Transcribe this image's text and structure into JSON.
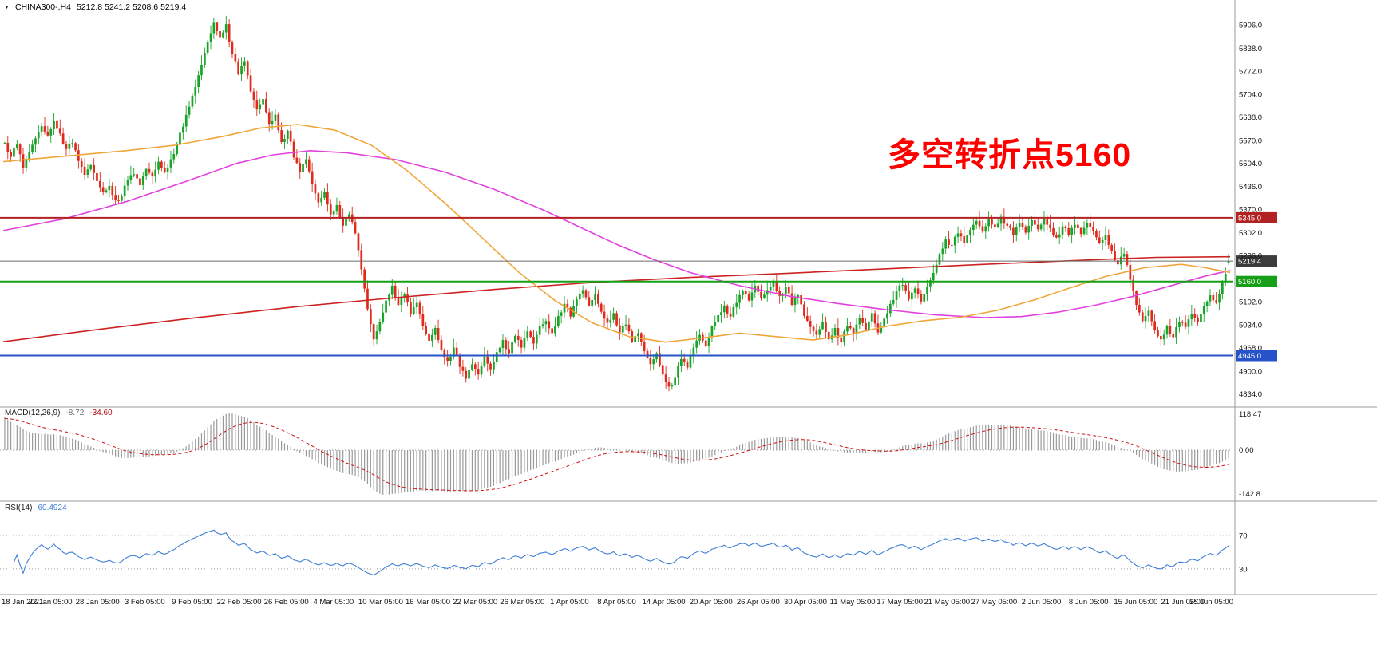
{
  "header": {
    "collapse_icon": "▼",
    "symbol": "CHINA300-,H4",
    "ohlc": "5212.8 5241.2 5208.6 5219.4"
  },
  "annotation": {
    "text": "多空转折点5160",
    "color": "#FF0000"
  },
  "chart_data": {
    "type": "candlestick",
    "symbol": "CHINA300-",
    "timeframe": "H4",
    "title": "CHINA300-,H4",
    "last_ohlc": {
      "open": 5212.8,
      "high": 5241.2,
      "low": 5208.6,
      "close": 5219.4
    },
    "price_range": {
      "max": 5943,
      "min": 4807
    },
    "price_axis_labels": [
      "5906.0",
      "5838.0",
      "5772.0",
      "5704.0",
      "5638.0",
      "5570.0",
      "5504.0",
      "5436.0",
      "5370.0",
      "5302.0",
      "5236.0",
      "5102.0",
      "5034.0",
      "4968.0",
      "4900.0",
      "4834.0"
    ],
    "time_labels": [
      "18 Jan 2021",
      "22 Jan 05:00",
      "28 Jan 05:00",
      "3 Feb 05:00",
      "9 Feb 05:00",
      "22 Feb 05:00",
      "26 Feb 05:00",
      "4 Mar 05:00",
      "10 Mar 05:00",
      "16 Mar 05:00",
      "22 Mar 05:00",
      "26 Mar 05:00",
      "1 Apr 05:00",
      "8 Apr 05:00",
      "14 Apr 05:00",
      "20 Apr 05:00",
      "26 Apr 05:00",
      "30 Apr 05:00",
      "11 May 05:00",
      "17 May 05:00",
      "21 May 05:00",
      "27 May 05:00",
      "2 Jun 05:00",
      "8 Jun 05:00",
      "15 Jun 05:00",
      "21 Jun 05:00",
      "25 Jun 05:00"
    ],
    "closes": [
      5563,
      5522,
      5558,
      5491,
      5535,
      5576,
      5611,
      5584,
      5628,
      5590,
      5545,
      5562,
      5510,
      5470,
      5498,
      5452,
      5420,
      5438,
      5396,
      5408,
      5455,
      5472,
      5440,
      5487,
      5465,
      5508,
      5478,
      5515,
      5560,
      5610,
      5668,
      5725,
      5790,
      5855,
      5912,
      5870,
      5908,
      5820,
      5762,
      5798,
      5712,
      5660,
      5690,
      5618,
      5645,
      5565,
      5598,
      5520,
      5478,
      5515,
      5442,
      5390,
      5420,
      5355,
      5382,
      5322,
      5355,
      5300,
      5195,
      5080,
      4992,
      5042,
      5105,
      5148,
      5092,
      5122,
      5065,
      5098,
      5030,
      4988,
      5025,
      4962,
      4930,
      4968,
      4912,
      4878,
      4920,
      4890,
      4942,
      4905,
      4955,
      4990,
      4952,
      5002,
      4968,
      5015,
      4980,
      5030,
      5045,
      5010,
      5060,
      5095,
      5058,
      5108,
      5135,
      5090,
      5122,
      5072,
      5040,
      5068,
      5012,
      5035,
      4985,
      5010,
      4958,
      4920,
      4952,
      4890,
      4855,
      4880,
      4935,
      4910,
      4968,
      5005,
      4972,
      5030,
      5062,
      5090,
      5058,
      5098,
      5132,
      5105,
      5148,
      5112,
      5135,
      5160,
      5118,
      5145,
      5092,
      5120,
      5060,
      5028,
      5005,
      5042,
      4992,
      5025,
      4985,
      5030,
      5008,
      5055,
      5020,
      5068,
      5012,
      5052,
      5095,
      5132,
      5150,
      5108,
      5140,
      5102,
      5146,
      5185,
      5240,
      5282,
      5265,
      5300,
      5272,
      5310,
      5336,
      5305,
      5340,
      5318,
      5348,
      5322,
      5295,
      5330,
      5302,
      5338,
      5312,
      5342,
      5315,
      5288,
      5320,
      5295,
      5325,
      5298,
      5330,
      5308,
      5272,
      5295,
      5248,
      5210,
      5240,
      5165,
      5092,
      5045,
      5075,
      5018,
      4992,
      5030,
      4998,
      5042,
      5028,
      5065,
      5042,
      5088,
      5120,
      5098,
      5160,
      5219.4
    ],
    "horizontal_lines": [
      {
        "price": 5345.0,
        "label": "5345.0",
        "color": "#B22222",
        "width": 2
      },
      {
        "price": 5219.4,
        "label": "5219.4",
        "color": "#6B6B6B",
        "width": 1,
        "tag_color": "#3C3C3C"
      },
      {
        "price": 5160.0,
        "label": "5160.0",
        "color": "#17A017",
        "width": 2
      },
      {
        "price": 4945.0,
        "label": "4945.0",
        "color": "#2753C8",
        "width": 2
      }
    ],
    "moving_averages": [
      {
        "name": "ma-long-red",
        "color": "#CC2222",
        "width": 1.6,
        "points": [
          [
            0,
            4985
          ],
          [
            0.08,
            5022
          ],
          [
            0.16,
            5056
          ],
          [
            0.24,
            5087
          ],
          [
            0.32,
            5113
          ],
          [
            0.4,
            5137
          ],
          [
            0.48,
            5157
          ],
          [
            0.56,
            5172
          ],
          [
            0.64,
            5184
          ],
          [
            0.72,
            5197
          ],
          [
            0.8,
            5210
          ],
          [
            0.88,
            5222
          ],
          [
            0.94,
            5230
          ],
          [
            1,
            5232
          ]
        ]
      },
      {
        "name": "ma-mid-magenta",
        "color": "#E241DE",
        "width": 1.6,
        "points": [
          [
            0,
            5308
          ],
          [
            0.05,
            5342
          ],
          [
            0.1,
            5392
          ],
          [
            0.15,
            5452
          ],
          [
            0.19,
            5503
          ],
          [
            0.22,
            5528
          ],
          [
            0.25,
            5540
          ],
          [
            0.28,
            5534
          ],
          [
            0.32,
            5514
          ],
          [
            0.36,
            5478
          ],
          [
            0.4,
            5428
          ],
          [
            0.44,
            5368
          ],
          [
            0.47,
            5318
          ],
          [
            0.5,
            5268
          ],
          [
            0.53,
            5224
          ],
          [
            0.56,
            5186
          ],
          [
            0.6,
            5148
          ],
          [
            0.64,
            5118
          ],
          [
            0.68,
            5096
          ],
          [
            0.72,
            5078
          ],
          [
            0.76,
            5063
          ],
          [
            0.8,
            5055
          ],
          [
            0.83,
            5058
          ],
          [
            0.86,
            5071
          ],
          [
            0.89,
            5091
          ],
          [
            0.92,
            5116
          ],
          [
            0.95,
            5146
          ],
          [
            0.98,
            5176
          ],
          [
            1,
            5192
          ]
        ]
      },
      {
        "name": "ma-fast-orange",
        "color": "#EFA63A",
        "width": 1.6,
        "points": [
          [
            0,
            5508
          ],
          [
            0.05,
            5524
          ],
          [
            0.1,
            5540
          ],
          [
            0.14,
            5556
          ],
          [
            0.18,
            5582
          ],
          [
            0.21,
            5606
          ],
          [
            0.24,
            5616
          ],
          [
            0.27,
            5600
          ],
          [
            0.3,
            5556
          ],
          [
            0.33,
            5480
          ],
          [
            0.36,
            5388
          ],
          [
            0.39,
            5288
          ],
          [
            0.42,
            5188
          ],
          [
            0.45,
            5104
          ],
          [
            0.48,
            5040
          ],
          [
            0.51,
            5000
          ],
          [
            0.54,
            4984
          ],
          [
            0.57,
            4996
          ],
          [
            0.6,
            5010
          ],
          [
            0.63,
            5000
          ],
          [
            0.66,
            4990
          ],
          [
            0.69,
            5006
          ],
          [
            0.72,
            5030
          ],
          [
            0.75,
            5046
          ],
          [
            0.78,
            5056
          ],
          [
            0.81,
            5076
          ],
          [
            0.84,
            5106
          ],
          [
            0.87,
            5142
          ],
          [
            0.9,
            5176
          ],
          [
            0.93,
            5200
          ],
          [
            0.96,
            5210
          ],
          [
            0.98,
            5200
          ],
          [
            1,
            5186
          ]
        ]
      }
    ],
    "candle_colors": {
      "up": "#18A428",
      "down": "#E02A1C"
    },
    "macd": {
      "label": "MACD(12,26,9)",
      "value_main": "-8.72",
      "value_signal": "-34.60",
      "axis_labels": [
        "118.47",
        "0.00",
        "-142.8"
      ],
      "histogram_color": "#9A9A9A",
      "signal_color": "#CC1111",
      "periods": {
        "fast": 12,
        "slow": 26,
        "signal": 9
      }
    },
    "rsi": {
      "label": "RSI(14)",
      "value": "60.4924",
      "levels": [
        70,
        30
      ],
      "line_color": "#3F7FD4",
      "period": 14
    }
  }
}
